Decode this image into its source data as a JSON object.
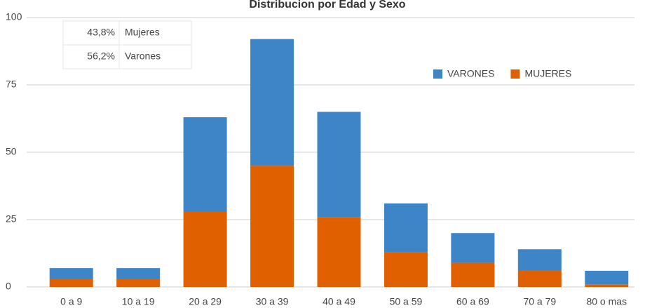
{
  "chart_data": {
    "type": "stacked_bar",
    "title": "Distribucion por Edad y Sexo",
    "categories": [
      "0 a 9",
      "10 a 19",
      "20 a 29",
      "30 a 39",
      "40 a 49",
      "50 a 59",
      "60 a 69",
      "70 a 79",
      "80 o mas"
    ],
    "series": [
      {
        "name": "MUJERES",
        "color": "#e06000",
        "values": [
          3,
          3,
          28,
          45,
          26,
          13,
          9,
          6,
          1
        ]
      },
      {
        "name": "VARONES",
        "color": "#3d85c6",
        "values": [
          4,
          4,
          35,
          47,
          39,
          18,
          11,
          8,
          5
        ]
      }
    ],
    "ylim": [
      0,
      100
    ],
    "yticks": [
      0,
      25,
      50,
      75,
      100
    ],
    "grid": true,
    "legend": "top-right",
    "summary_table": [
      [
        "43,8%",
        "Mujeres"
      ],
      [
        "56,2%",
        "Varones"
      ]
    ]
  }
}
